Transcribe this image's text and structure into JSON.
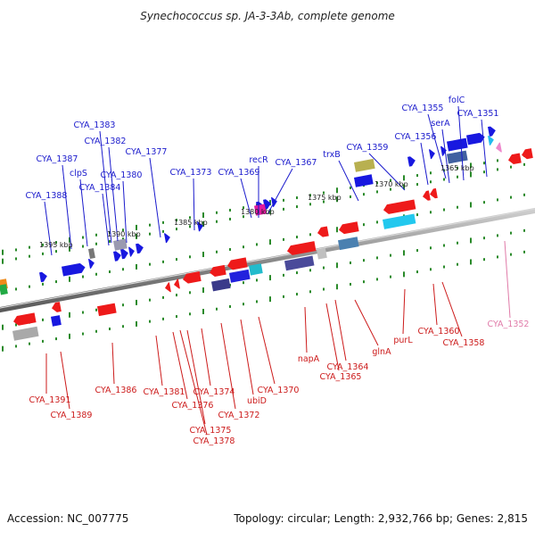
{
  "title": "Synechococcus sp. JA-3-3Ab, complete genome",
  "footer": {
    "accession": "Accession: NC_007775",
    "summary": "Topology: circular; Length: 2,932,766 bp; Genes: 2,815"
  },
  "colors": {
    "backbone": "#8a8a8a",
    "forward_label": "#1a1acc",
    "reverse_label": "#cc1a1a",
    "rna_label": "#e07aa8",
    "tick_dot": "#2a8a2a",
    "forward_gene": "#1818e0",
    "reverse_gene": "#ee1a1a"
  },
  "scale_labels": [
    "1395 kbp",
    "1390 kbp",
    "1385 kbp",
    "1380 kbp",
    "1375 kbp",
    "1370 kbp",
    "1365 kbp"
  ],
  "forward_genes": [
    "CYA_1388",
    "CYA_1387",
    "clpS",
    "CYA_1384",
    "CYA_1383",
    "CYA_1382",
    "CYA_1380",
    "CYA_1377",
    "CYA_1373",
    "CYA_1369",
    "recR",
    "CYA_1367",
    "trxB",
    "CYA_1359",
    "CYA_1356",
    "serA",
    "CYA_1355",
    "folC",
    "CYA_1351"
  ],
  "reverse_genes": [
    "CYA_1391",
    "CYA_1389",
    "CYA_1386",
    "CYA_1381",
    "CYA_1376",
    "CYA_1378",
    "CYA_1375",
    "CYA_1374",
    "CYA_1372",
    "ubiD",
    "CYA_1370",
    "napA",
    "CYA_1365",
    "CYA_1364",
    "glnA",
    "purL",
    "CYA_1360",
    "CYA_1358"
  ],
  "rna_genes": [
    "CYA_1352"
  ]
}
